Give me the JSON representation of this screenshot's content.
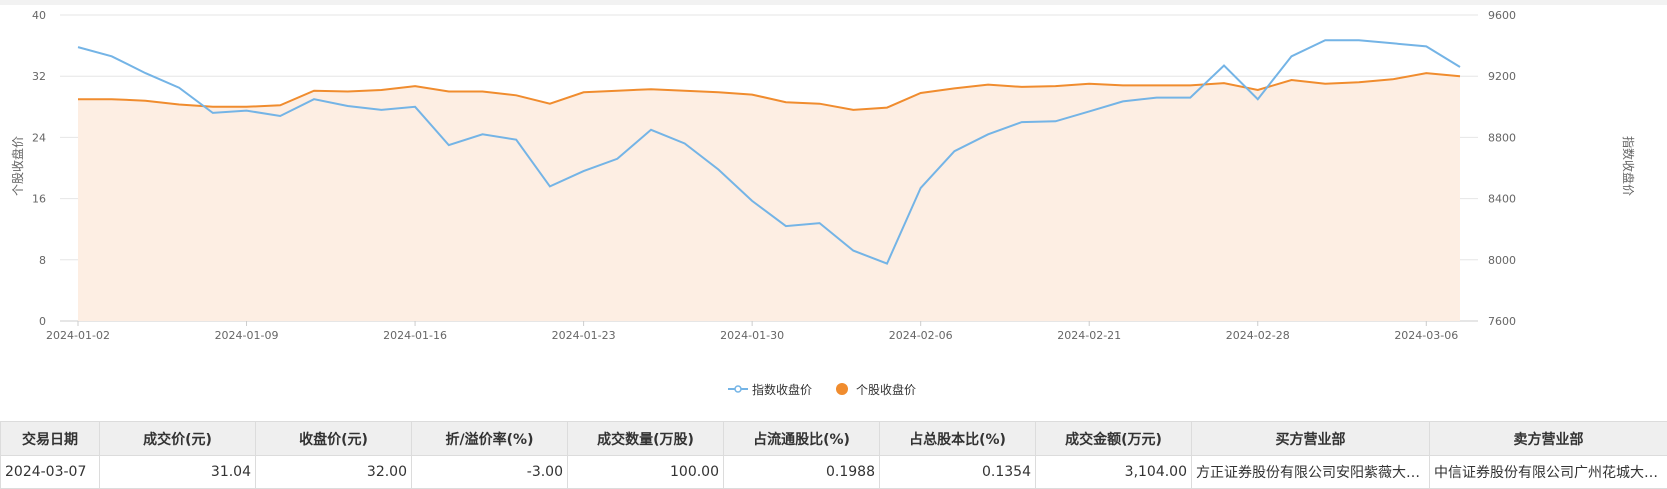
{
  "chart_data": {
    "type": "line",
    "title": "",
    "y_left": {
      "label": "个股收盘价",
      "min": 0,
      "max": 40,
      "ticks": [
        0,
        8,
        16,
        24,
        32,
        40
      ]
    },
    "y_right": {
      "label": "指数收盘价",
      "min": 7600,
      "max": 9600,
      "ticks": [
        7600,
        8000,
        8400,
        8800,
        9200,
        9600
      ]
    },
    "x_tick_labels": [
      "2024-01-02",
      "2024-01-09",
      "2024-01-16",
      "2024-01-23",
      "2024-01-30",
      "2024-02-06",
      "2024-02-21",
      "2024-02-28",
      "2024-03-06"
    ],
    "x_tick_index": [
      0,
      5,
      10,
      15,
      20,
      25,
      30,
      35,
      40
    ],
    "legend_position": "bottom-center",
    "grid": true,
    "series": [
      {
        "name": "指数收盘价",
        "axis": "right",
        "color": "#74b4e6",
        "values": [
          9390,
          9330,
          9220,
          9125,
          8960,
          8975,
          8940,
          9050,
          9005,
          8980,
          9000,
          8750,
          8820,
          8785,
          8480,
          8580,
          8660,
          8850,
          8760,
          8590,
          8385,
          8220,
          8240,
          8060,
          7975,
          8470,
          8710,
          8820,
          8900,
          8905,
          8970,
          9035,
          9060,
          9060,
          9270,
          9050,
          9330,
          9435,
          9435,
          9415,
          9395,
          9260
        ]
      },
      {
        "name": "个股收盘价",
        "axis": "left",
        "color": "#f08c2e",
        "fill": "#fdeee3",
        "values": [
          29.0,
          29.0,
          28.8,
          28.3,
          28.0,
          28.0,
          28.2,
          30.1,
          30.0,
          30.2,
          30.7,
          30.0,
          30.0,
          29.5,
          28.4,
          29.9,
          30.1,
          30.3,
          30.1,
          29.9,
          29.6,
          28.6,
          28.4,
          27.6,
          27.9,
          29.8,
          30.4,
          30.9,
          30.6,
          30.7,
          31.0,
          30.8,
          30.8,
          30.8,
          31.1,
          30.2,
          31.5,
          31.0,
          31.2,
          31.6,
          32.4,
          32.0
        ]
      }
    ]
  },
  "table": {
    "headers": [
      "交易日期",
      "成交价(元)",
      "收盘价(元)",
      "折/溢价率(%)",
      "成交数量(万股)",
      "占流通股比(%)",
      "占总股本比(%)",
      "成交金额(万元)",
      "买方营业部",
      "卖方营业部"
    ],
    "rows": [
      [
        "2024-03-07",
        "31.04",
        "32.00",
        "-3.00",
        "100.00",
        "0.1988",
        "0.1354",
        "3,104.00",
        "方正证券股份有限公司安阳紫薇大道证券营业部",
        "中信证券股份有限公司广州花城大道证券营业部"
      ]
    ]
  }
}
